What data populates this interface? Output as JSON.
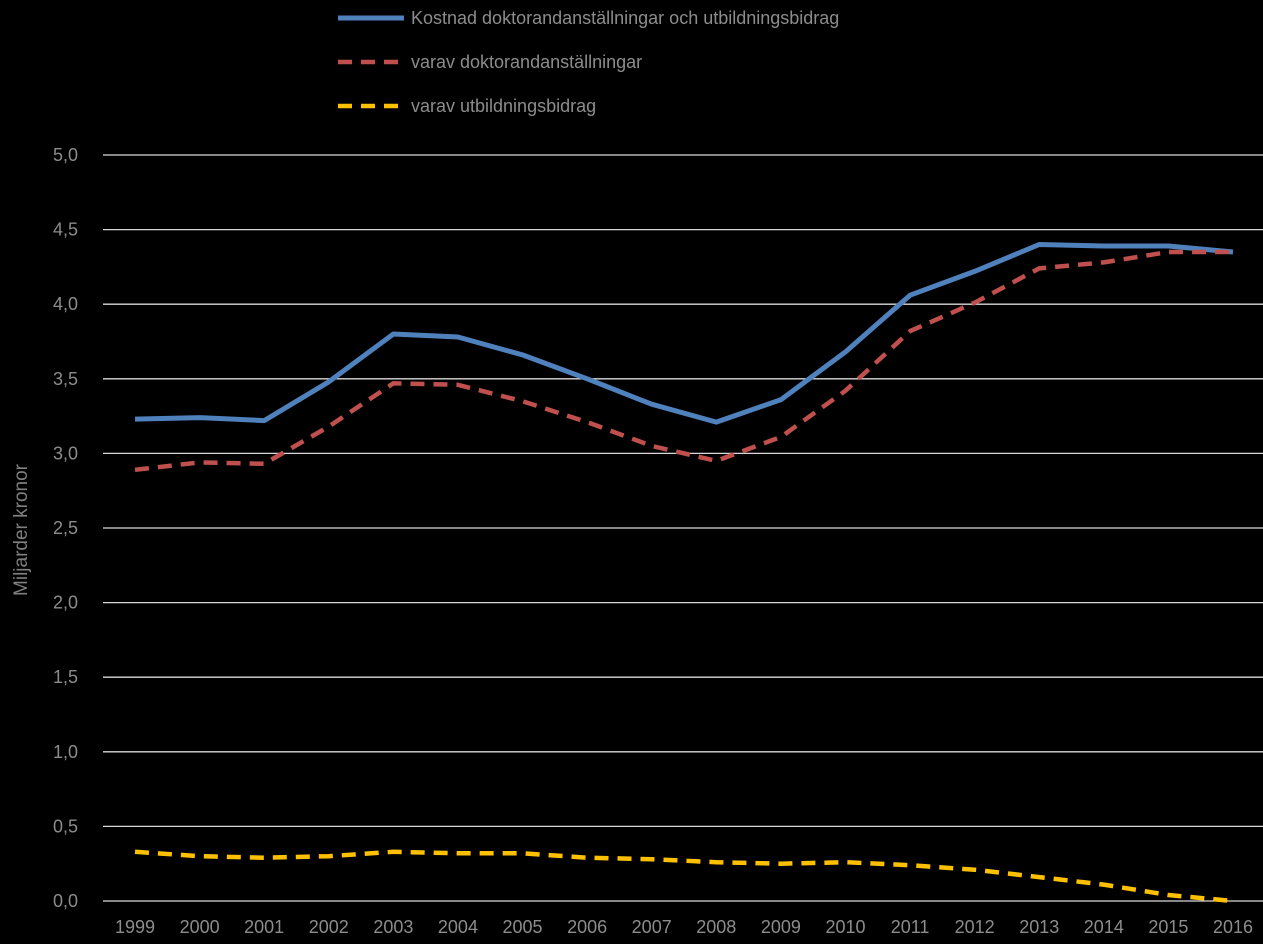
{
  "chart_data": {
    "type": "line",
    "title": "",
    "xlabel": "",
    "ylabel": "Miljarder kronor",
    "x": [
      "1999",
      "2000",
      "2001",
      "2002",
      "2003",
      "2004",
      "2005",
      "2006",
      "2007",
      "2008",
      "2009",
      "2010",
      "2011",
      "2012",
      "2013",
      "2014",
      "2015",
      "2016"
    ],
    "ylim": [
      0,
      5
    ],
    "yticks": [
      "0,0",
      "0,5",
      "1,0",
      "1,5",
      "2,0",
      "2,5",
      "3,0",
      "3,5",
      "4,0",
      "4,5",
      "5,0"
    ],
    "grid": true,
    "legend_position": "top",
    "series": [
      {
        "name": "Kostnad doktorandanställningar och utbildningsbidrag",
        "style": "solid",
        "color": "#4f81bd",
        "values": [
          3.23,
          3.24,
          3.22,
          3.48,
          3.8,
          3.78,
          3.66,
          3.5,
          3.33,
          3.21,
          3.36,
          3.68,
          4.06,
          4.22,
          4.4,
          4.39,
          4.39,
          4.35
        ]
      },
      {
        "name": "varav doktorandanställningar",
        "style": "dashed",
        "color": "#c0504d",
        "values": [
          2.89,
          2.94,
          2.93,
          3.18,
          3.47,
          3.46,
          3.35,
          3.21,
          3.05,
          2.95,
          3.11,
          3.42,
          3.82,
          4.01,
          4.24,
          4.28,
          4.35,
          4.35
        ]
      },
      {
        "name": "varav utbildningsbidrag",
        "style": "dashed",
        "color": "#ffc000",
        "values": [
          0.33,
          0.3,
          0.29,
          0.3,
          0.33,
          0.32,
          0.32,
          0.29,
          0.28,
          0.26,
          0.25,
          0.26,
          0.24,
          0.21,
          0.16,
          0.11,
          0.04,
          0.0
        ]
      }
    ]
  }
}
